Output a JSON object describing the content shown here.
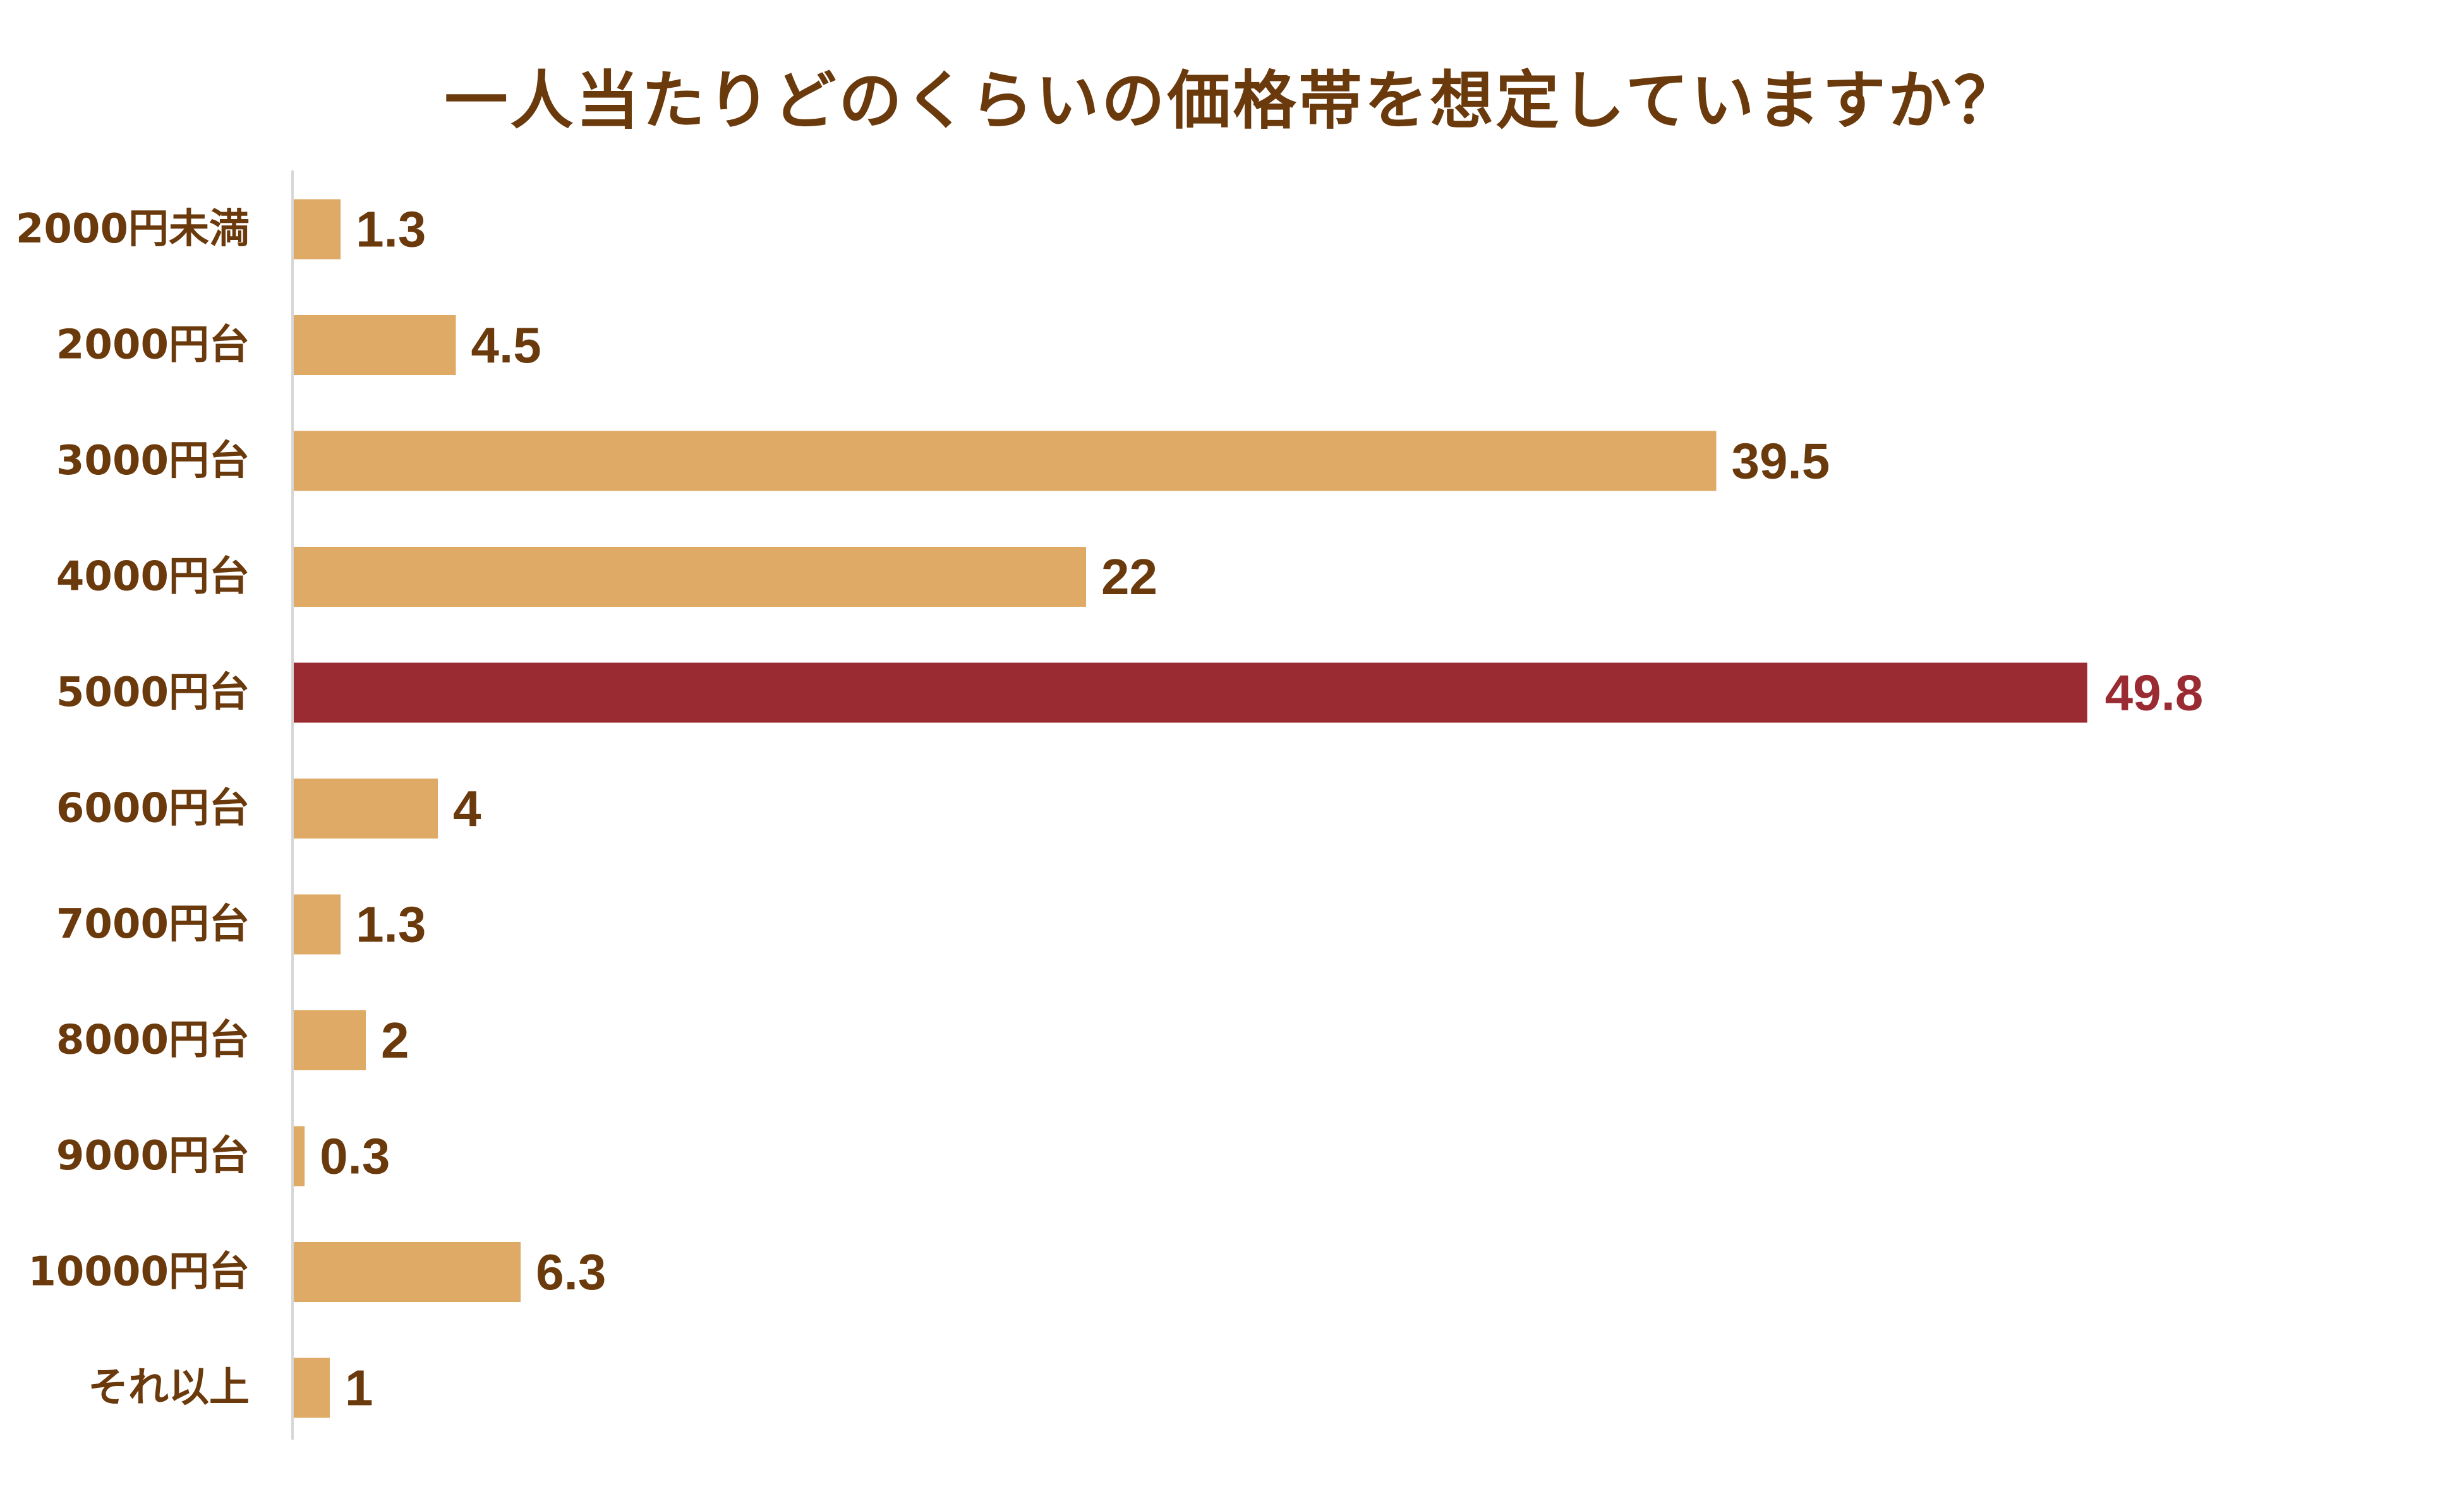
{
  "colors": {
    "bar": "#dfaa66",
    "highlight": "#9a2b33",
    "text": "#6b3a0c",
    "axis": "#d6d6d6"
  },
  "chart_data": {
    "type": "bar",
    "orientation": "horizontal",
    "title": "一人当たりどのくらいの価格帯を想定していますか？",
    "categories": [
      "2000円未満",
      "2000円台",
      "3000円台",
      "4000円台",
      "5000円台",
      "6000円台",
      "7000円台",
      "8000円台",
      "9000円台",
      "10000円台",
      "それ以上"
    ],
    "values": [
      1.3,
      4.5,
      39.5,
      22,
      49.8,
      4,
      1.3,
      2,
      0.3,
      6.3,
      1
    ],
    "value_labels": [
      "1.3",
      "4.5",
      "39.5",
      "22",
      "49.8",
      "4",
      "1.3",
      "2",
      "0.3",
      "6.3",
      "1"
    ],
    "highlight_category": "5000円台",
    "xlim": [
      0,
      50
    ],
    "grid": false,
    "legend": "none"
  }
}
